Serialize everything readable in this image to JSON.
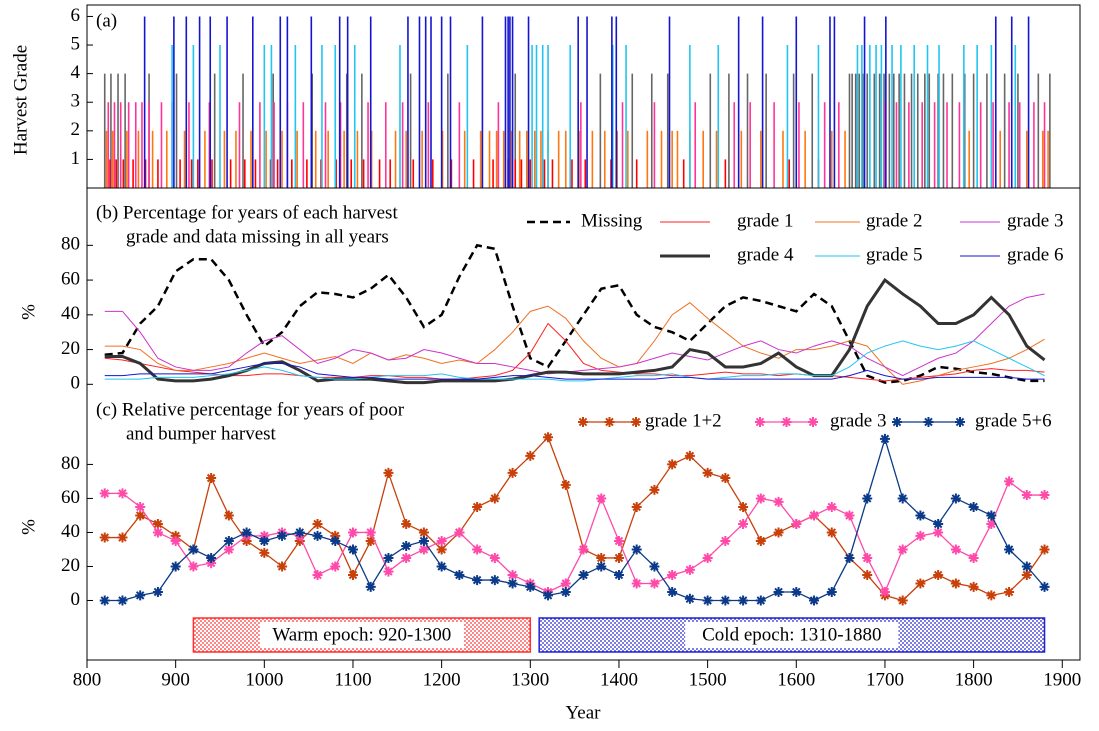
{
  "chart_data": [
    {
      "type": "bar",
      "panel_label": "(a)",
      "ylabel": "Harvest Grade",
      "xlim": [
        800,
        1920
      ],
      "ylim": [
        0,
        6.4
      ],
      "yticks": [
        1,
        2,
        3,
        4,
        5,
        6
      ],
      "series": [
        {
          "grade": 4,
          "color": "#666666",
          "x": [
            820,
            827,
            835,
            843,
            870,
            901,
            944,
            976,
            1010,
            1054,
            1093,
            1110,
            1165,
            1207,
            1283,
            1379,
            1415,
            1437,
            1455,
            1503,
            1524,
            1545,
            1566,
            1597,
            1618,
            1660,
            1663,
            1667,
            1671,
            1675,
            1680,
            1688,
            1694,
            1699,
            1705,
            1710,
            1716,
            1722,
            1730,
            1737,
            1745,
            1750,
            1760,
            1766,
            1776,
            1790,
            1800,
            1815,
            1835,
            1850,
            1873,
            1886
          ]
        },
        {
          "grade": 3,
          "color": "#ff3399",
          "x": [
            824,
            831,
            838,
            847,
            855,
            862,
            870,
            884,
            896,
            915,
            938,
            972,
            995,
            1011,
            1026,
            1044,
            1069,
            1086,
            1117,
            1137,
            1156,
            1185,
            1220,
            1264,
            1357,
            1404,
            1440,
            1486,
            1530,
            1548,
            1575,
            1603,
            1632,
            1648,
            1700,
            1713,
            1727,
            1742,
            1756,
            1770,
            1784,
            1808,
            1822,
            1840,
            1852,
            1868,
            1880
          ]
        },
        {
          "grade": 2,
          "color": "#ff7711",
          "x": [
            822,
            829,
            845,
            858,
            874,
            890,
            910,
            933,
            955,
            968,
            985,
            1002,
            1020,
            1037,
            1058,
            1072,
            1090,
            1105,
            1121,
            1148,
            1160,
            1178,
            1201,
            1226,
            1244,
            1254,
            1262,
            1270,
            1279,
            1288,
            1296,
            1305,
            1312,
            1320,
            1332,
            1340,
            1355,
            1370,
            1384,
            1398,
            1410,
            1432,
            1448,
            1460,
            1466,
            1480,
            1495,
            1510,
            1538,
            1560,
            1585,
            1610,
            1640,
            1655,
            1795,
            1830,
            1860,
            1878,
            1884
          ]
        },
        {
          "grade": 1,
          "color": "#ff0000",
          "x": [
            826,
            833,
            841,
            852,
            866,
            880,
            905,
            918,
            925,
            941,
            962,
            978,
            990,
            1007,
            1015,
            1031,
            1048,
            1064,
            1081,
            1098,
            1112,
            1130,
            1142,
            1168,
            1190,
            1211,
            1236,
            1258,
            1275,
            1283,
            1290,
            1300,
            1316,
            1325,
            1347,
            1362,
            1391,
            1420,
            1473,
            1520,
            1592,
            1625
          ]
        },
        {
          "grade": 5,
          "color": "#22c5f0",
          "x": [
            896,
            920,
            950,
            1000,
            1008,
            1035,
            1065,
            1080,
            1102,
            1153,
            1229,
            1302,
            1307,
            1314,
            1320,
            1345,
            1393,
            1408,
            1480,
            1512,
            1590,
            1625,
            1669,
            1674,
            1683,
            1690,
            1696,
            1708,
            1718,
            1733,
            1748,
            1761,
            1789,
            1804,
            1820,
            1847
          ]
        },
        {
          "grade": 6,
          "color": "#1515d0",
          "x": [
            865,
            898,
            912,
            927,
            939,
            958,
            987,
            1018,
            1026,
            1053,
            1085,
            1094,
            1120,
            1162,
            1175,
            1182,
            1188,
            1200,
            1210,
            1246,
            1272,
            1275,
            1277,
            1280,
            1298,
            1354,
            1364,
            1392,
            1397,
            1457,
            1535,
            1562,
            1600,
            1638,
            1643,
            1677,
            1701,
            1825,
            1843,
            1862
          ]
        }
      ]
    },
    {
      "type": "line",
      "title": [
        "(b) Percentage for years of each harvest",
        "grade and data missing in all years"
      ],
      "ylabel": "%",
      "xlim": [
        800,
        1920
      ],
      "ylim": [
        -5,
        113
      ],
      "yticks": [
        0,
        20,
        40,
        60,
        80
      ],
      "x": [
        820,
        840,
        860,
        880,
        900,
        920,
        940,
        960,
        980,
        1000,
        1020,
        1040,
        1060,
        1080,
        1100,
        1120,
        1140,
        1160,
        1180,
        1200,
        1220,
        1240,
        1260,
        1280,
        1300,
        1320,
        1340,
        1360,
        1380,
        1400,
        1420,
        1440,
        1460,
        1480,
        1500,
        1520,
        1540,
        1560,
        1580,
        1600,
        1620,
        1640,
        1660,
        1680,
        1700,
        1720,
        1740,
        1760,
        1780,
        1800,
        1820,
        1840,
        1860,
        1880
      ],
      "series": [
        {
          "name": "Missing",
          "color": "#000000",
          "width": 2.5,
          "dashed": true,
          "values": [
            17,
            18,
            35,
            45,
            65,
            72,
            72,
            60,
            40,
            22,
            30,
            45,
            53,
            52,
            50,
            55,
            63,
            50,
            33,
            40,
            62,
            80,
            78,
            45,
            15,
            10,
            25,
            40,
            55,
            57,
            40,
            33,
            30,
            25,
            35,
            45,
            50,
            48,
            45,
            42,
            52,
            45,
            25,
            5,
            1,
            2,
            5,
            10,
            9,
            7,
            6,
            4,
            2,
            2
          ]
        },
        {
          "name": "grade 1",
          "color": "#ff2020",
          "width": 1,
          "dashed": false,
          "values": [
            15,
            14,
            12,
            10,
            8,
            7,
            6,
            5,
            5,
            6,
            6,
            5,
            4,
            4,
            4,
            5,
            5,
            4,
            4,
            3,
            3,
            4,
            5,
            8,
            18,
            35,
            25,
            12,
            8,
            7,
            6,
            6,
            5,
            5,
            6,
            7,
            6,
            6,
            5,
            6,
            5,
            5,
            4,
            3,
            2,
            3,
            4,
            5,
            6,
            8,
            9,
            8,
            8,
            7
          ]
        },
        {
          "name": "grade 2",
          "color": "#f07020",
          "width": 1,
          "dashed": false,
          "values": [
            22,
            22,
            20,
            12,
            8,
            8,
            10,
            12,
            15,
            18,
            15,
            12,
            14,
            16,
            12,
            18,
            14,
            17,
            15,
            12,
            14,
            12,
            20,
            30,
            42,
            45,
            38,
            25,
            15,
            10,
            12,
            25,
            40,
            47,
            38,
            30,
            22,
            18,
            15,
            20,
            20,
            22,
            25,
            22,
            10,
            0,
            2,
            5,
            8,
            10,
            12,
            15,
            20,
            26
          ]
        },
        {
          "name": "grade 3",
          "color": "#cc33cc",
          "width": 1,
          "dashed": false,
          "values": [
            42,
            42,
            30,
            15,
            10,
            8,
            8,
            10,
            18,
            25,
            28,
            20,
            12,
            15,
            20,
            18,
            14,
            15,
            20,
            18,
            15,
            12,
            12,
            10,
            8,
            6,
            7,
            8,
            9,
            10,
            12,
            15,
            18,
            16,
            14,
            18,
            22,
            25,
            20,
            18,
            22,
            25,
            22,
            15,
            10,
            5,
            10,
            15,
            18,
            25,
            35,
            45,
            50,
            52
          ]
        },
        {
          "name": "grade 4",
          "color": "#333333",
          "width": 3,
          "dashed": false,
          "values": [
            16,
            16,
            12,
            3,
            2,
            2,
            3,
            5,
            8,
            12,
            13,
            8,
            2,
            3,
            3,
            3,
            2,
            1,
            1,
            2,
            2,
            2,
            2,
            3,
            5,
            7,
            7,
            6,
            6,
            6,
            7,
            8,
            10,
            20,
            18,
            10,
            10,
            12,
            18,
            10,
            5,
            5,
            20,
            45,
            60,
            52,
            45,
            35,
            35,
            40,
            50,
            40,
            22,
            14
          ]
        },
        {
          "name": "grade 5",
          "color": "#22c5f0",
          "width": 1,
          "dashed": false,
          "values": [
            3,
            3,
            3,
            4,
            4,
            4,
            5,
            6,
            8,
            10,
            8,
            5,
            4,
            3,
            3,
            4,
            5,
            5,
            5,
            6,
            4,
            3,
            3,
            3,
            3,
            3,
            2,
            2,
            3,
            4,
            5,
            5,
            6,
            4,
            3,
            4,
            5,
            5,
            6,
            6,
            5,
            5,
            10,
            18,
            22,
            25,
            22,
            20,
            22,
            25,
            20,
            15,
            10,
            5
          ]
        },
        {
          "name": "grade 6",
          "color": "#1515d0",
          "width": 1,
          "dashed": false,
          "values": [
            5,
            5,
            6,
            6,
            6,
            6,
            6,
            8,
            10,
            12,
            12,
            10,
            6,
            5,
            4,
            4,
            3,
            3,
            3,
            3,
            3,
            3,
            4,
            5,
            5,
            4,
            3,
            3,
            3,
            3,
            3,
            3,
            4,
            4,
            3,
            3,
            3,
            3,
            3,
            3,
            3,
            3,
            5,
            8,
            5,
            3,
            3,
            4,
            4,
            4,
            4,
            4,
            3,
            3
          ]
        }
      ]
    },
    {
      "type": "line",
      "markers": "star",
      "title": [
        "(c) Relative percentage for years of poor",
        "and bumper harvest"
      ],
      "ylabel": "%",
      "xlim": [
        800,
        1920
      ],
      "ylim": [
        -35,
        122
      ],
      "yticks": [
        0,
        20,
        40,
        60,
        80
      ],
      "xticks": [
        800,
        900,
        1000,
        1100,
        1200,
        1300,
        1400,
        1500,
        1600,
        1700,
        1800,
        1900
      ],
      "xlabel": "Year",
      "x": [
        820,
        840,
        860,
        880,
        900,
        920,
        940,
        960,
        980,
        1000,
        1020,
        1040,
        1060,
        1080,
        1100,
        1120,
        1140,
        1160,
        1180,
        1200,
        1220,
        1240,
        1260,
        1280,
        1300,
        1320,
        1340,
        1360,
        1380,
        1400,
        1420,
        1440,
        1460,
        1480,
        1500,
        1520,
        1540,
        1560,
        1580,
        1600,
        1620,
        1640,
        1660,
        1680,
        1700,
        1720,
        1740,
        1760,
        1780,
        1800,
        1820,
        1840,
        1860,
        1880
      ],
      "series": [
        {
          "name": "grade 1+2",
          "color": "#c8400a",
          "values": [
            37,
            37,
            50,
            45,
            38,
            30,
            72,
            50,
            35,
            28,
            20,
            35,
            45,
            38,
            15,
            35,
            75,
            45,
            40,
            30,
            40,
            55,
            60,
            75,
            85,
            96,
            68,
            30,
            25,
            25,
            55,
            65,
            80,
            85,
            75,
            72,
            55,
            35,
            40,
            45,
            50,
            40,
            25,
            15,
            3,
            0,
            10,
            15,
            10,
            8,
            3,
            5,
            15,
            30
          ]
        },
        {
          "name": "grade 3",
          "color": "#ff4aaa",
          "values": [
            63,
            63,
            55,
            40,
            35,
            20,
            22,
            30,
            38,
            38,
            40,
            38,
            15,
            20,
            40,
            40,
            17,
            25,
            30,
            35,
            40,
            30,
            25,
            15,
            10,
            5,
            10,
            30,
            60,
            35,
            10,
            10,
            15,
            18,
            25,
            35,
            45,
            60,
            58,
            45,
            50,
            55,
            50,
            25,
            5,
            30,
            38,
            40,
            30,
            25,
            45,
            70,
            62,
            62
          ]
        },
        {
          "name": "grade 5+6",
          "color": "#0b3a8a",
          "values": [
            0,
            0,
            3,
            5,
            20,
            30,
            25,
            35,
            40,
            35,
            38,
            40,
            38,
            35,
            30,
            8,
            25,
            32,
            35,
            20,
            15,
            12,
            12,
            10,
            8,
            3,
            5,
            15,
            20,
            15,
            30,
            20,
            5,
            1,
            0,
            0,
            0,
            0,
            5,
            5,
            0,
            5,
            25,
            60,
            95,
            60,
            50,
            45,
            60,
            55,
            50,
            30,
            20,
            8
          ]
        }
      ],
      "annotations": [
        {
          "text": "Warm epoch: 920-1300",
          "start": 920,
          "end": 1300,
          "color": "#ff3030"
        },
        {
          "text": "Cold epoch: 1310-1880",
          "start": 1310,
          "end": 1880,
          "color": "#2020d0"
        }
      ]
    }
  ]
}
